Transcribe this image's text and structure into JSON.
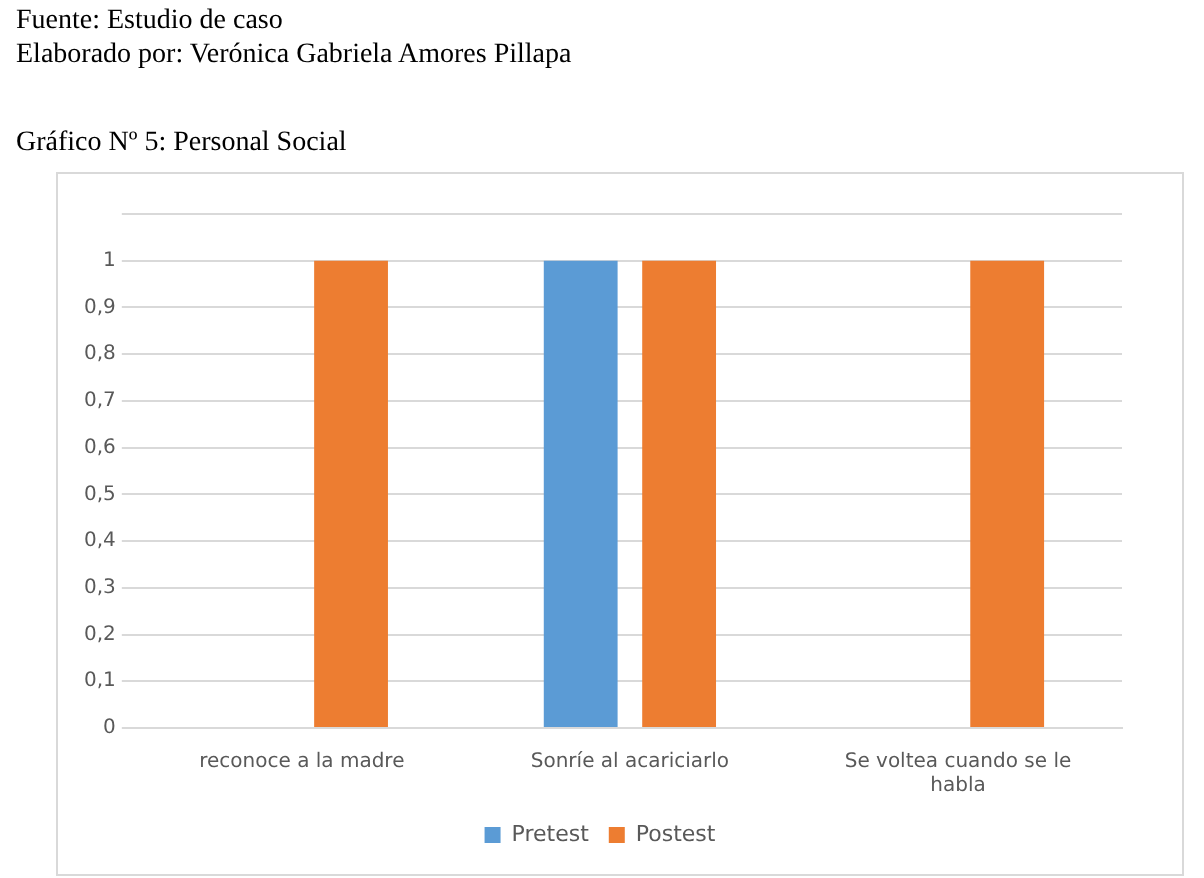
{
  "chart_data": {
    "type": "bar",
    "title": "Gráfico Nº 5: Personal Social",
    "annotations": [
      "Fuente: Estudio de caso",
      "Elaborado por: Verónica Gabriela Amores Pillapa"
    ],
    "categories": [
      "reconoce a la madre",
      "Sonríe al acariciarlo",
      "Se voltea cuando se le habla"
    ],
    "series": [
      {
        "name": "Pretest",
        "color": "#5b9bd5",
        "values": [
          0,
          1,
          0
        ]
      },
      {
        "name": "Postest",
        "color": "#ed7d31",
        "values": [
          1,
          1,
          1
        ]
      }
    ],
    "ylim": [
      0,
      1.1
    ],
    "yticks": [
      {
        "value": 0,
        "label": "0"
      },
      {
        "value": 0.1,
        "label": "0,1"
      },
      {
        "value": 0.2,
        "label": "0,2"
      },
      {
        "value": 0.3,
        "label": "0,3"
      },
      {
        "value": 0.4,
        "label": "0,4"
      },
      {
        "value": 0.5,
        "label": "0,5"
      },
      {
        "value": 0.6,
        "label": "0,6"
      },
      {
        "value": 0.7,
        "label": "0,7"
      },
      {
        "value": 0.8,
        "label": "0,8"
      },
      {
        "value": 0.9,
        "label": "0,9"
      },
      {
        "value": 1,
        "label": "1"
      },
      {
        "value": 1.1,
        "label": null
      }
    ],
    "grid": "y",
    "legend": "bottom"
  }
}
